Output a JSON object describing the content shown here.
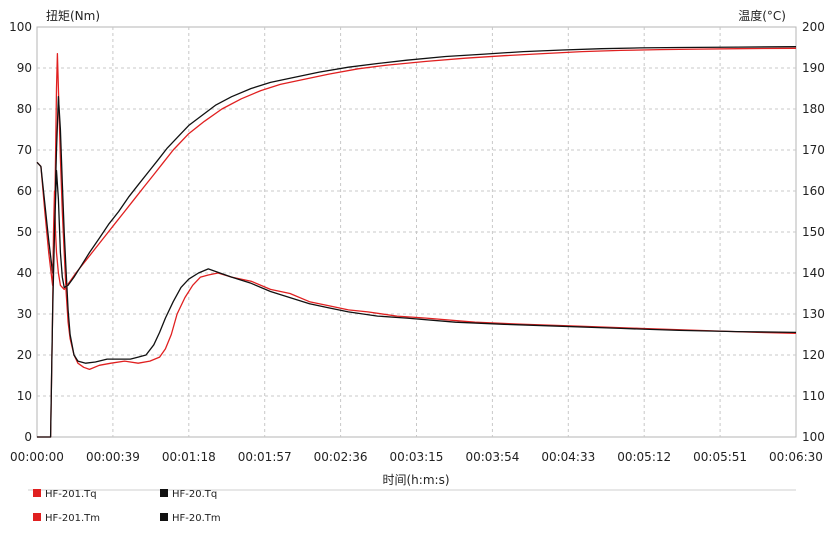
{
  "chart_data": {
    "type": "line",
    "left_axis_title": "扭矩(Nm)",
    "right_axis_title": "温度(°C)",
    "xlabel": "时间(h:m:s)",
    "x_tick_labels": [
      "00:00:00",
      "00:00:39",
      "00:01:18",
      "00:01:57",
      "00:02:36",
      "00:03:15",
      "00:03:54",
      "00:04:33",
      "00:05:12",
      "00:05:51",
      "00:06:30"
    ],
    "xlim_seconds": [
      0,
      390
    ],
    "ylim_left": [
      0,
      100
    ],
    "ylim_right": [
      100,
      200
    ],
    "y_left_ticks": [
      "0",
      "10",
      "20",
      "30",
      "40",
      "50",
      "60",
      "70",
      "80",
      "90",
      "100"
    ],
    "y_right_ticks": [
      "100",
      "110",
      "120",
      "130",
      "140",
      "150",
      "160",
      "170",
      "180",
      "190",
      "200"
    ],
    "grid": true,
    "legend_position": "bottom",
    "series": [
      {
        "name": "HF-201.Tq",
        "color": "#e02020",
        "axis": "left",
        "points": [
          [
            0,
            67
          ],
          [
            2,
            66
          ],
          [
            4,
            55
          ],
          [
            6,
            45
          ],
          [
            8,
            37
          ],
          [
            9,
            50
          ],
          [
            10,
            85
          ],
          [
            10.5,
            93.5
          ],
          [
            11,
            85
          ],
          [
            12,
            68
          ],
          [
            13,
            55
          ],
          [
            14,
            45
          ],
          [
            15,
            35
          ],
          [
            16,
            28
          ],
          [
            17,
            24
          ],
          [
            19,
            20
          ],
          [
            21,
            18
          ],
          [
            24,
            17
          ],
          [
            27,
            16.5
          ],
          [
            32,
            17.5
          ],
          [
            38,
            18
          ],
          [
            45,
            18.5
          ],
          [
            52,
            18
          ],
          [
            58,
            18.5
          ],
          [
            63,
            19.5
          ],
          [
            66,
            21.5
          ],
          [
            69,
            25
          ],
          [
            72,
            30
          ],
          [
            76,
            34
          ],
          [
            80,
            37
          ],
          [
            84,
            39
          ],
          [
            88,
            39.5
          ],
          [
            93,
            40
          ],
          [
            100,
            39
          ],
          [
            110,
            38
          ],
          [
            120,
            36
          ],
          [
            130,
            35
          ],
          [
            140,
            33
          ],
          [
            150,
            32
          ],
          [
            160,
            31
          ],
          [
            170,
            30.5
          ],
          [
            185,
            29.5
          ],
          [
            200,
            29
          ],
          [
            225,
            28
          ],
          [
            250,
            27.5
          ],
          [
            280,
            27
          ],
          [
            310,
            26.5
          ],
          [
            340,
            26
          ],
          [
            370,
            25.5
          ],
          [
            390,
            25.3
          ]
        ]
      },
      {
        "name": "HF-20.Tq",
        "color": "#111111",
        "axis": "left",
        "points": [
          [
            0,
            67
          ],
          [
            2,
            66
          ],
          [
            4,
            57
          ],
          [
            6,
            48
          ],
          [
            8,
            40
          ],
          [
            9,
            52
          ],
          [
            10,
            70
          ],
          [
            11,
            83
          ],
          [
            12,
            75
          ],
          [
            13,
            62
          ],
          [
            14,
            50
          ],
          [
            15,
            40
          ],
          [
            16,
            31
          ],
          [
            17,
            25
          ],
          [
            19,
            20
          ],
          [
            21,
            18.5
          ],
          [
            25,
            18
          ],
          [
            30,
            18.3
          ],
          [
            36,
            19
          ],
          [
            42,
            19
          ],
          [
            48,
            19
          ],
          [
            52,
            19.5
          ],
          [
            56,
            20
          ],
          [
            60,
            22.5
          ],
          [
            63,
            25.5
          ],
          [
            66,
            29
          ],
          [
            70,
            33
          ],
          [
            74,
            36.5
          ],
          [
            78,
            38.5
          ],
          [
            83,
            40
          ],
          [
            88,
            41
          ],
          [
            94,
            40
          ],
          [
            100,
            39
          ],
          [
            110,
            37.5
          ],
          [
            120,
            35.5
          ],
          [
            130,
            34
          ],
          [
            140,
            32.5
          ],
          [
            150,
            31.5
          ],
          [
            160,
            30.5
          ],
          [
            175,
            29.5
          ],
          [
            190,
            29
          ],
          [
            215,
            28
          ],
          [
            240,
            27.5
          ],
          [
            270,
            27
          ],
          [
            300,
            26.5
          ],
          [
            330,
            26
          ],
          [
            360,
            25.7
          ],
          [
            390,
            25.5
          ]
        ]
      },
      {
        "name": "HF-201.Tm",
        "color": "#e02020",
        "axis": "right",
        "points": [
          [
            0,
            100
          ],
          [
            6,
            100
          ],
          [
            7,
            100
          ],
          [
            8,
            130
          ],
          [
            8.5,
            150
          ],
          [
            9,
            160
          ],
          [
            9.5,
            150
          ],
          [
            10,
            145
          ],
          [
            11,
            140
          ],
          [
            12,
            137
          ],
          [
            14,
            136
          ],
          [
            17,
            138
          ],
          [
            20,
            140
          ],
          [
            25,
            143
          ],
          [
            30,
            146
          ],
          [
            35,
            149
          ],
          [
            40,
            152
          ],
          [
            45,
            155
          ],
          [
            50,
            158
          ],
          [
            55,
            161
          ],
          [
            60,
            164
          ],
          [
            65,
            167
          ],
          [
            70,
            170
          ],
          [
            78,
            174
          ],
          [
            86,
            177
          ],
          [
            95,
            180
          ],
          [
            105,
            182.5
          ],
          [
            115,
            184.5
          ],
          [
            125,
            186
          ],
          [
            135,
            187
          ],
          [
            150,
            188.5
          ],
          [
            165,
            189.8
          ],
          [
            180,
            190.7
          ],
          [
            200,
            191.6
          ],
          [
            220,
            192.4
          ],
          [
            240,
            193
          ],
          [
            260,
            193.5
          ],
          [
            280,
            194
          ],
          [
            300,
            194.3
          ],
          [
            320,
            194.5
          ],
          [
            340,
            194.6
          ],
          [
            360,
            194.7
          ],
          [
            390,
            194.8
          ]
        ]
      },
      {
        "name": "HF-20.Tm",
        "color": "#111111",
        "axis": "right",
        "points": [
          [
            0,
            100
          ],
          [
            6,
            100
          ],
          [
            7,
            100
          ],
          [
            8,
            130
          ],
          [
            9,
            150
          ],
          [
            10,
            165
          ],
          [
            11,
            158
          ],
          [
            12,
            145
          ],
          [
            13,
            139
          ],
          [
            14,
            136.5
          ],
          [
            16,
            137
          ],
          [
            19,
            139
          ],
          [
            23,
            142
          ],
          [
            27,
            145
          ],
          [
            32,
            148.5
          ],
          [
            37,
            152
          ],
          [
            42,
            155
          ],
          [
            47,
            158.5
          ],
          [
            52,
            161.5
          ],
          [
            57,
            164.5
          ],
          [
            62,
            167.5
          ],
          [
            67,
            170.5
          ],
          [
            72,
            173
          ],
          [
            78,
            176
          ],
          [
            85,
            178.5
          ],
          [
            92,
            181
          ],
          [
            100,
            183
          ],
          [
            110,
            185
          ],
          [
            120,
            186.5
          ],
          [
            130,
            187.5
          ],
          [
            145,
            189
          ],
          [
            160,
            190.2
          ],
          [
            175,
            191.1
          ],
          [
            190,
            191.9
          ],
          [
            210,
            192.8
          ],
          [
            230,
            193.4
          ],
          [
            250,
            194
          ],
          [
            270,
            194.4
          ],
          [
            290,
            194.7
          ],
          [
            310,
            194.9
          ],
          [
            330,
            195
          ],
          [
            360,
            195.1
          ],
          [
            390,
            195.2
          ]
        ]
      }
    ]
  }
}
